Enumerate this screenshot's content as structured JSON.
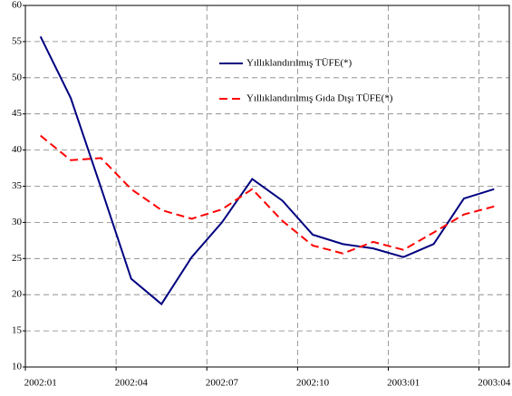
{
  "chart_data": {
    "type": "line",
    "categories": [
      "2002:01",
      null,
      null,
      "2002:04",
      null,
      null,
      "2002:07",
      null,
      null,
      "2002:10",
      null,
      null,
      "2003:01",
      null,
      null,
      "2003:04"
    ],
    "series": [
      {
        "name": "Yıllıklandırılmış TÜFE(*)",
        "color": "#000080",
        "dashed": false,
        "values": [
          55.7,
          47.2,
          34.8,
          22.2,
          18.7,
          25.2,
          30.0,
          36.0,
          33.0,
          28.3,
          27.0,
          26.4,
          25.2,
          27.0,
          33.3,
          34.6
        ]
      },
      {
        "name": "Yıllıklandırılmış Gıda Dışı TÜFE(*)",
        "color": "#ff0000",
        "dashed": true,
        "values": [
          42.0,
          38.6,
          38.9,
          34.6,
          31.7,
          30.5,
          31.8,
          34.6,
          30.2,
          26.8,
          25.7,
          27.3,
          26.2,
          28.6,
          31.1,
          32.2
        ]
      }
    ],
    "ylim": [
      10,
      60
    ],
    "yticks": [
      10,
      15,
      20,
      25,
      30,
      35,
      40,
      45,
      50,
      55,
      60
    ],
    "grid": true
  }
}
